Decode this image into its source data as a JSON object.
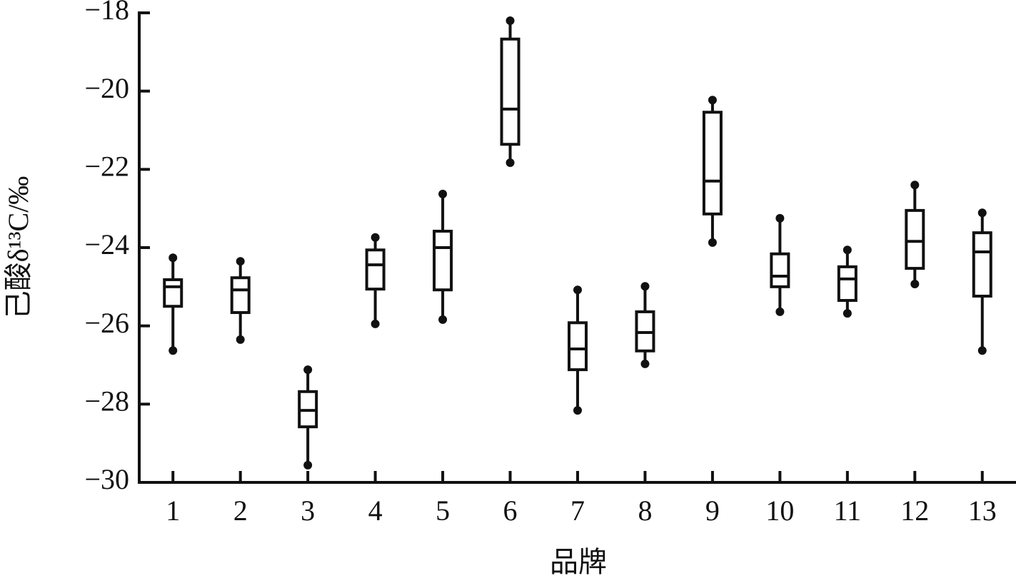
{
  "chart_data": {
    "type": "box",
    "x_label": "品牌",
    "y_label": "己酸δ¹³C/‰",
    "categories": [
      "1",
      "2",
      "3",
      "4",
      "5",
      "6",
      "7",
      "8",
      "9",
      "10",
      "11",
      "12",
      "13"
    ],
    "max": [
      -24.26,
      -24.35,
      -27.12,
      -23.74,
      -22.63,
      -18.2,
      -25.08,
      -24.99,
      -20.23,
      -23.25,
      -24.06,
      -22.4,
      -23.11
    ],
    "q3": [
      -24.82,
      -24.77,
      -27.68,
      -24.06,
      -23.58,
      -18.67,
      -25.92,
      -25.64,
      -20.54,
      -24.16,
      -24.49,
      -23.05,
      -23.62
    ],
    "median": [
      -25.0,
      -25.08,
      -28.16,
      -24.44,
      -24.0,
      -20.46,
      -26.59,
      -26.17,
      -22.3,
      -24.73,
      -24.8,
      -23.84,
      -24.11
    ],
    "q1": [
      -25.5,
      -25.66,
      -28.58,
      -25.06,
      -25.08,
      -21.36,
      -27.12,
      -26.64,
      -23.14,
      -25.0,
      -25.35,
      -24.53,
      -25.24
    ],
    "min": [
      -26.63,
      -26.35,
      -29.56,
      -25.95,
      -25.84,
      -21.83,
      -28.16,
      -26.97,
      -23.87,
      -25.64,
      -25.68,
      -24.93,
      -26.63
    ],
    "color": "#111111",
    "ylim": [
      -30,
      -18
    ],
    "yticks": [
      {
        "value": -30,
        "label": "−30"
      },
      {
        "value": -28,
        "label": "−28"
      },
      {
        "value": -26,
        "label": "−26"
      },
      {
        "value": -24,
        "label": "−24"
      },
      {
        "value": -22,
        "label": "−22"
      },
      {
        "value": -20,
        "label": "−20"
      },
      {
        "value": -18,
        "label": "−18"
      }
    ]
  }
}
